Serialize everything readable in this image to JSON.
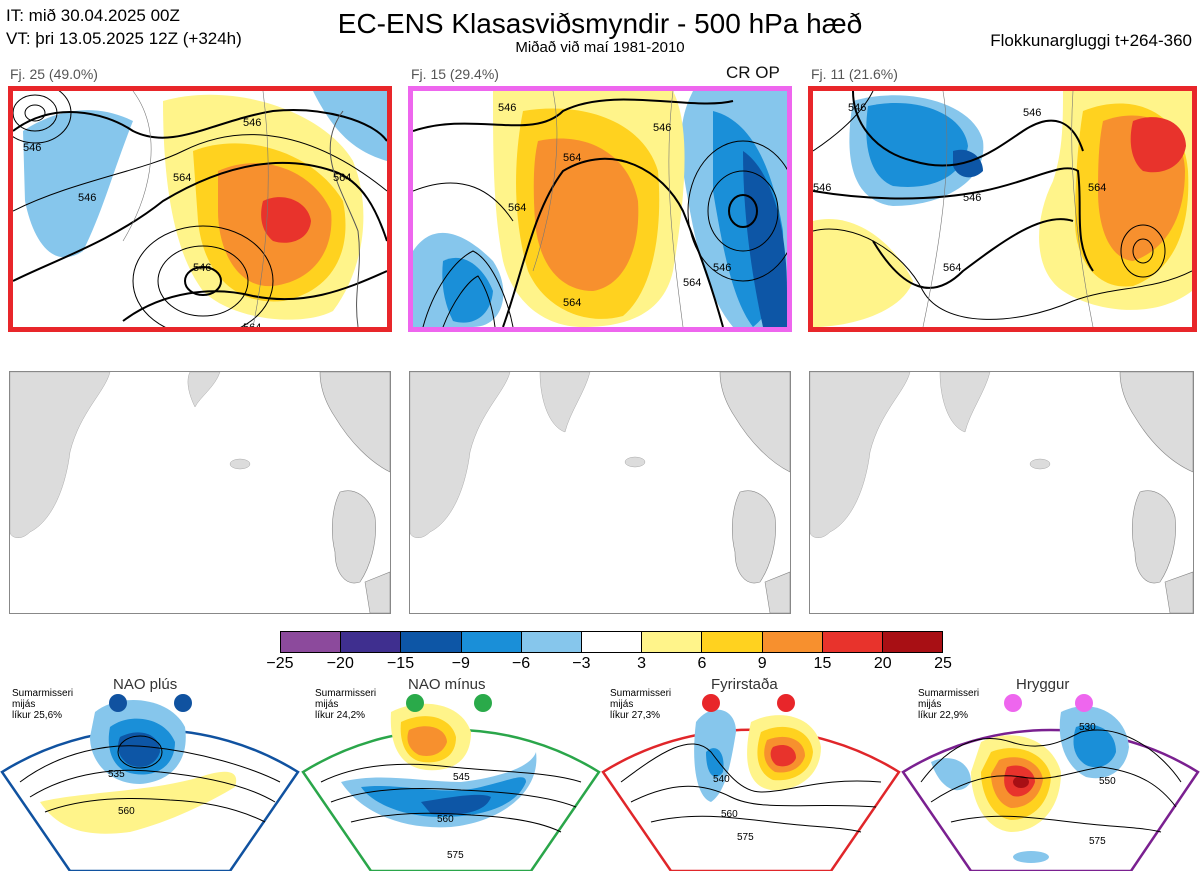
{
  "header": {
    "it_line": "IT: mið 30.04.2025 00Z",
    "vt_line": "VT: þri 13.05.2025 12Z  (+324h)",
    "title": "EC-ENS Klasasviðsmyndir - 500 hPa hæð",
    "subtitle": "Miðað við maí 1981-2010",
    "window": "Flokkunargluggi t+264-360"
  },
  "clusters": [
    {
      "label": "Fj. 25 (49.0%)",
      "border_color": "#e8262a",
      "badge": "",
      "contours": [
        "546",
        "546",
        "564",
        "546",
        "564",
        "546",
        "564"
      ]
    },
    {
      "label": "Fj. 15 (29.4%)",
      "border_color": "#ee66ee",
      "badge": "CR OP",
      "contours": [
        "546",
        "546",
        "564",
        "564",
        "564",
        "546",
        "564"
      ]
    },
    {
      "label": "Fj. 11 (21.6%)",
      "border_color": "#e8262a",
      "badge": "",
      "contours": [
        "546",
        "546",
        "546",
        "564",
        "564",
        "546"
      ]
    }
  ],
  "colorbar": {
    "ticks": [
      "−25",
      "−20",
      "−15",
      "−9",
      "−6",
      "−3",
      "3",
      "6",
      "9",
      "15",
      "20",
      "25"
    ],
    "colors": [
      "#8c4a9c",
      "#3f2f8f",
      "#0d56a6",
      "#1a8fd8",
      "#86c6ec",
      "#ffffff",
      "#fff48a",
      "#ffd21f",
      "#f7902e",
      "#e8332c",
      "#a80f14"
    ]
  },
  "regimes": [
    {
      "name": "NAO plús",
      "info": [
        "Sumarmisseri",
        "mijás",
        "líkur 25,6%"
      ],
      "border_color": "#1052a0",
      "dot_color": "#1052a0",
      "contours": [
        "535",
        "560"
      ]
    },
    {
      "name": "NAO mínus",
      "info": [
        "Sumarmisseri",
        "mijás",
        "líkur 24,2%"
      ],
      "border_color": "#2aa64a",
      "dot_color": "#2aaa4a",
      "contours": [
        "545",
        "560",
        "575"
      ]
    },
    {
      "name": "Fyrirstaða",
      "info": [
        "Sumarmisseri",
        "mijás",
        "líkur 27,3%"
      ],
      "border_color": "#e0262a",
      "dot_color": "#e8262a",
      "contours": [
        "540",
        "560",
        "575"
      ]
    },
    {
      "name": "Hryggur",
      "info": [
        "Sumarmisseri",
        "mijás",
        "líkur 22,9%"
      ],
      "border_color": "#7a2090",
      "dot_color": "#ee66ee",
      "contours": [
        "530",
        "550",
        "575"
      ]
    }
  ]
}
